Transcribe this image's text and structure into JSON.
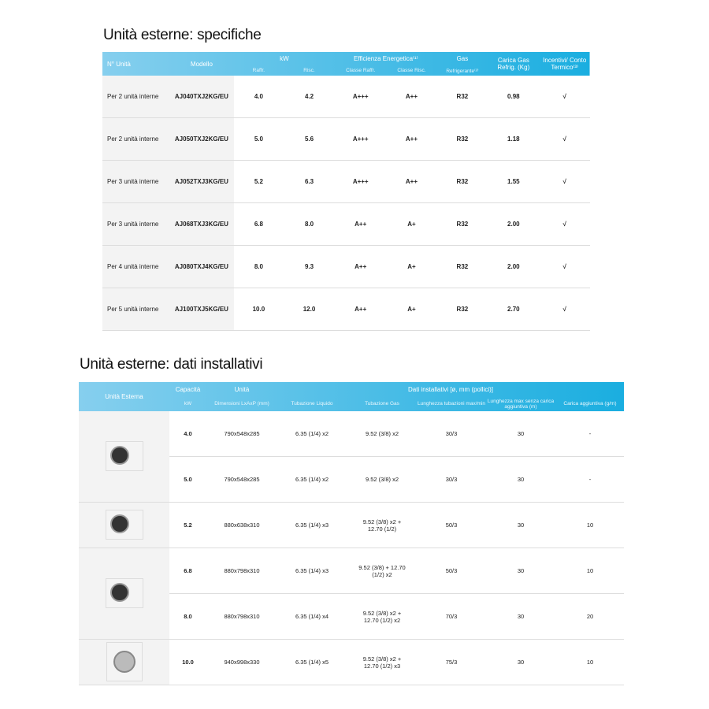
{
  "spec": {
    "title": "Unità esterne: specifiche",
    "headers": {
      "n": "N° Unità",
      "model": "Modello",
      "kw": "kW",
      "raffr": "Raffr.",
      "risc": "Risc.",
      "eff": "Efficienza Energetica⁽¹⁾",
      "classe_raffr": "Classe Raffr.",
      "classe_risc": "Classe Risc.",
      "gas": "Gas",
      "refrig": "Refrigerante⁽²⁾",
      "carica": "Carica Gas Refrig. (Kg)",
      "incentivi": "Incentivi/ Conto Termico⁽³⁾"
    },
    "rows": [
      [
        "Per 2 unità interne",
        "AJ040TXJ2KG/EU",
        "4.0",
        "4.2",
        "A+++",
        "A++",
        "R32",
        "0.98",
        "√"
      ],
      [
        "Per 2 unità interne",
        "AJ050TXJ2KG/EU",
        "5.0",
        "5.6",
        "A+++",
        "A++",
        "R32",
        "1.18",
        "√"
      ],
      [
        "Per 3 unità interne",
        "AJ052TXJ3KG/EU",
        "5.2",
        "6.3",
        "A+++",
        "A++",
        "R32",
        "1.55",
        "√"
      ],
      [
        "Per 3 unità interne",
        "AJ068TXJ3KG/EU",
        "6.8",
        "8.0",
        "A++",
        "A+",
        "R32",
        "2.00",
        "√"
      ],
      [
        "Per 4 unità interne",
        "AJ080TXJ4KG/EU",
        "8.0",
        "9.3",
        "A++",
        "A+",
        "R32",
        "2.00",
        "√"
      ],
      [
        "Per 5 unità interne",
        "AJ100TXJ5KG/EU",
        "10.0",
        "12.0",
        "A++",
        "A+",
        "R32",
        "2.70",
        "√"
      ]
    ]
  },
  "inst": {
    "title": "Unità esterne: dati installativi",
    "headers": {
      "unit": "Unità Esterna",
      "cap": "Capacità",
      "kw": "kW",
      "unita": "Unità",
      "dim": "Dimensioni LxAxP (mm)",
      "dati": "Dati installativi [ø, mm (pollici)]",
      "liq": "Tubazione Liquido",
      "gas": "Tubazione Gas",
      "lung": "Lunghezza tubazioni max/min",
      "lungmax": "Lunghezza max senza carica aggiuntiva (m)",
      "car": "Carica aggiuntiva (g/m)"
    },
    "rows": [
      [
        "4.0",
        "790x548x285",
        "6.35 (1/4) x2",
        "9.52 (3/8) x2",
        "30/3",
        "30",
        "-"
      ],
      [
        "5.0",
        "790x548x285",
        "6.35 (1/4) x2",
        "9.52 (3/8) x2",
        "30/3",
        "30",
        "-"
      ],
      [
        "5.2",
        "880x638x310",
        "6.35 (1/4) x3",
        "9.52 (3/8) x2 + 12.70 (1/2)",
        "50/3",
        "30",
        "10"
      ],
      [
        "6.8",
        "880x798x310",
        "6.35 (1/4) x3",
        "9.52 (3/8) + 12.70 (1/2) x2",
        "50/3",
        "30",
        "10"
      ],
      [
        "8.0",
        "880x798x310",
        "6.35 (1/4) x4",
        "9.52 (3/8) x2 + 12.70 (1/2) x2",
        "70/3",
        "30",
        "20"
      ],
      [
        "10.0",
        "940x998x330",
        "6.35 (1/4) x5",
        "9.52 (3/8) x2 + 12.70 (1/2) x3",
        "75/3",
        "30",
        "10"
      ]
    ]
  }
}
